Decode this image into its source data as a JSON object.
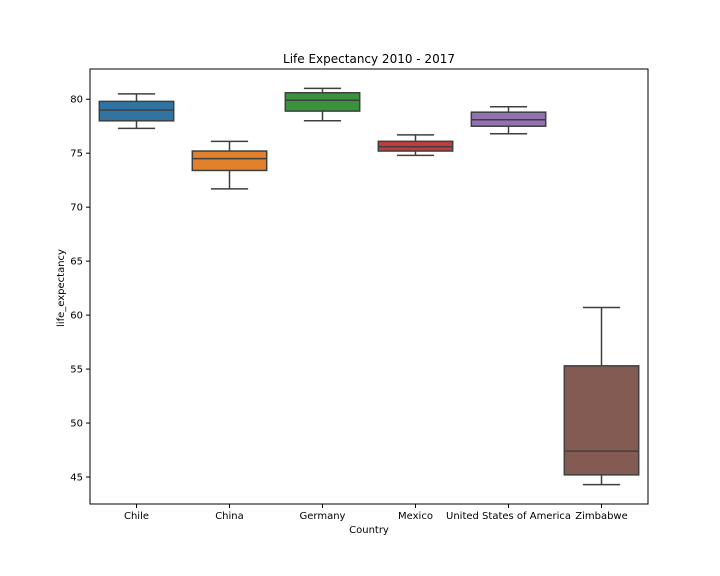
{
  "chart_data": {
    "type": "box",
    "title": "Life Expectancy 2010 - 2017",
    "xlabel": "Country",
    "ylabel": "life_expectancy",
    "ylim": [
      42.5,
      82.8
    ],
    "yticks": [
      45,
      50,
      55,
      60,
      65,
      70,
      75,
      80
    ],
    "grid": false,
    "categories": [
      "Chile",
      "China",
      "Germany",
      "Mexico",
      "United States of America",
      "Zimbabwe"
    ],
    "series": [
      {
        "category": "Chile",
        "whisker_low": 77.3,
        "q1": 78.0,
        "median": 79.0,
        "q3": 79.8,
        "whisker_high": 80.5,
        "color": "#3274a1"
      },
      {
        "category": "China",
        "whisker_low": 71.7,
        "q1": 73.4,
        "median": 74.5,
        "q3": 75.2,
        "whisker_high": 76.1,
        "color": "#e1812c"
      },
      {
        "category": "Germany",
        "whisker_low": 78.0,
        "q1": 78.9,
        "median": 79.9,
        "q3": 80.6,
        "whisker_high": 81.0,
        "color": "#3a923a"
      },
      {
        "category": "Mexico",
        "whisker_low": 74.8,
        "q1": 75.2,
        "median": 75.6,
        "q3": 76.1,
        "whisker_high": 76.7,
        "color": "#c03d3e"
      },
      {
        "category": "United States of America",
        "whisker_low": 76.8,
        "q1": 77.5,
        "median": 78.1,
        "q3": 78.8,
        "whisker_high": 79.3,
        "color": "#9372b2"
      },
      {
        "category": "Zimbabwe",
        "whisker_low": 44.3,
        "q1": 45.2,
        "median": 47.4,
        "q3": 55.3,
        "whisker_high": 60.7,
        "color": "#845b53"
      }
    ]
  }
}
